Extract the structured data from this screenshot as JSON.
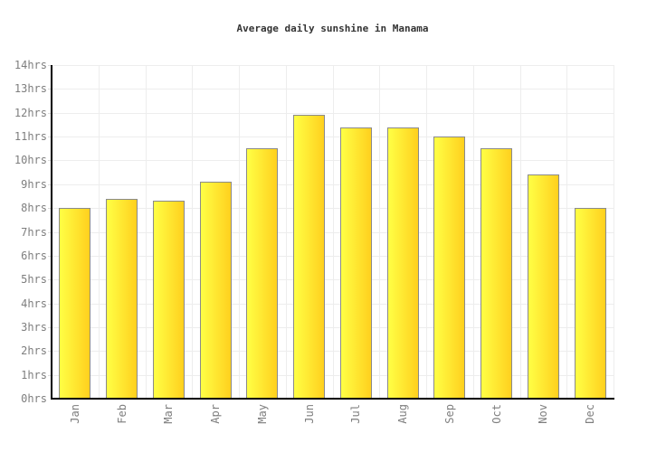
{
  "chart_data": {
    "type": "bar",
    "title": "Average daily sunshine in Manama",
    "categories": [
      "Jan",
      "Feb",
      "Mar",
      "Apr",
      "May",
      "Jun",
      "Jul",
      "Aug",
      "Sep",
      "Oct",
      "Nov",
      "Dec"
    ],
    "values": [
      8.0,
      8.4,
      8.3,
      9.1,
      10.5,
      11.9,
      11.4,
      11.4,
      11.0,
      10.5,
      9.4,
      8.0
    ],
    "unit": "hrs",
    "xlabel": "",
    "ylabel": "",
    "ylim": [
      0,
      14
    ],
    "ytick_step": 1,
    "y_tick_labels": [
      "0hrs",
      "1hrs",
      "2hrs",
      "3hrs",
      "4hrs",
      "5hrs",
      "6hrs",
      "7hrs",
      "8hrs",
      "9hrs",
      "10hrs",
      "11hrs",
      "12hrs",
      "13hrs",
      "14hrs"
    ],
    "grid": true,
    "legend": false,
    "x_label_rotation": -90,
    "bar_style": {
      "gradient_left": "#ffff45",
      "gradient_right": "#ffd01e",
      "border": "#8a8a8a"
    },
    "colors": {
      "background": "#ffffff",
      "grid": "#ededed",
      "tick": "#d8d8d8",
      "axis": "#000000",
      "axis_label": "#7e7e7e",
      "title": "#333333"
    }
  }
}
